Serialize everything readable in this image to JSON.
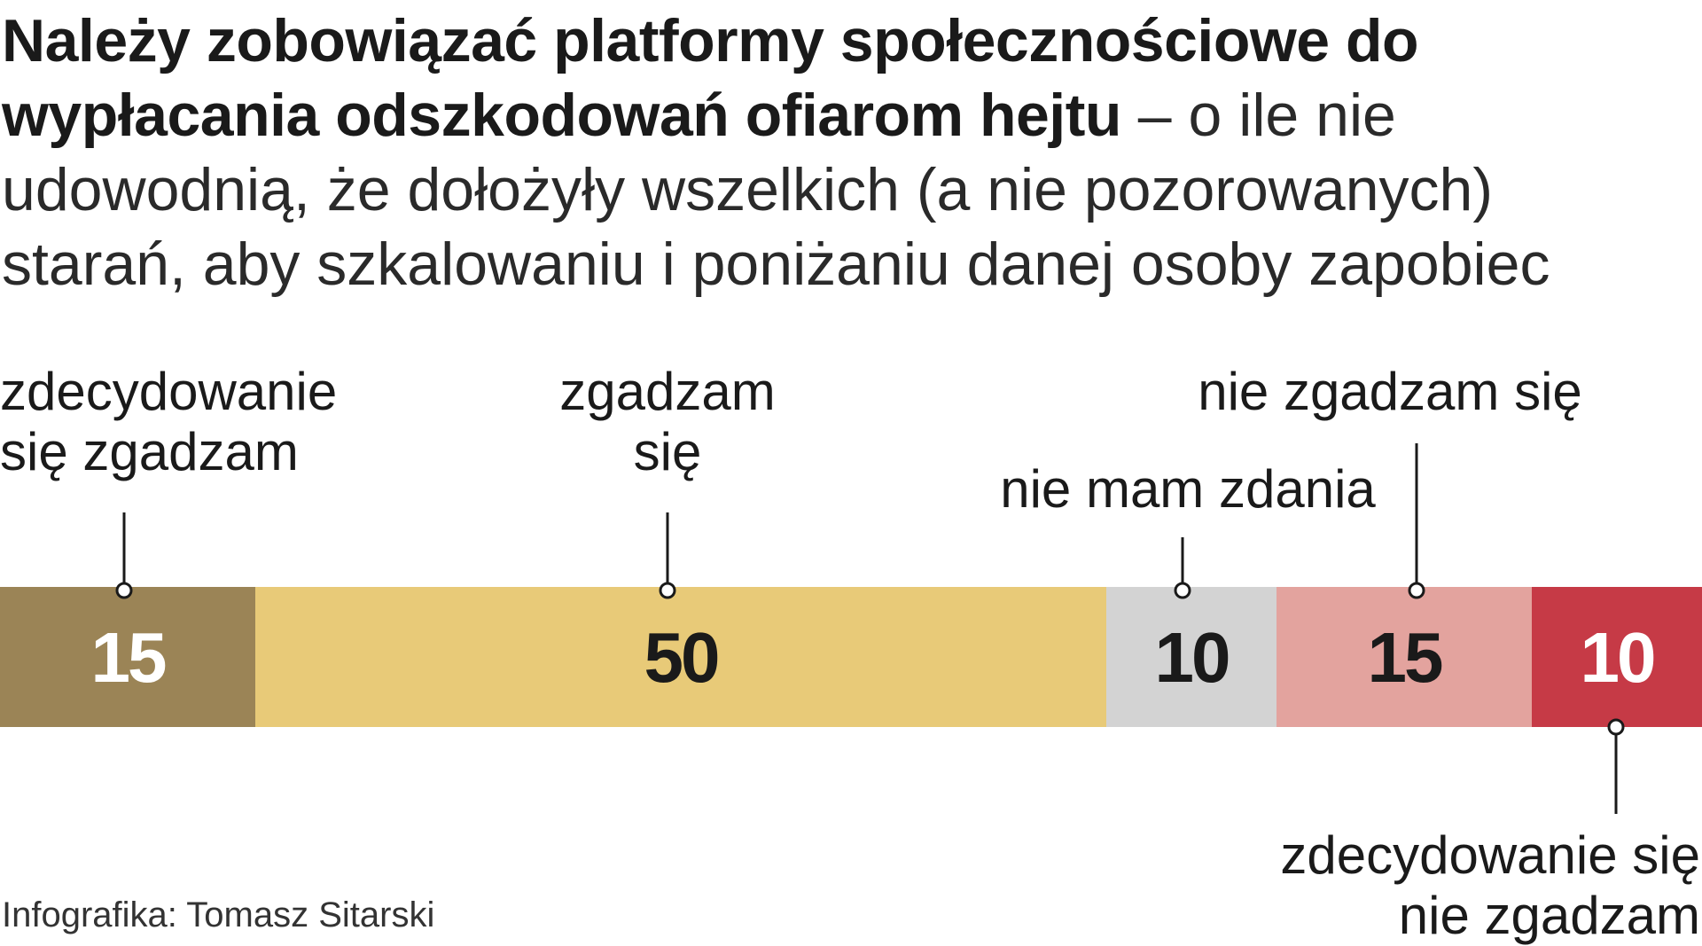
{
  "title": {
    "bold": "Należy zobowiązać platformy społecznościowe do wypłacania odszkodowań ofiarom hejtu",
    "rest": " – o ile nie udowodnią, że dołożyły wszelkich (a nie pozorowanych) starań, aby szkalowaniu i poniżaniu danej osoby zapobiec"
  },
  "credit": "Infografika: Tomasz Sitarski",
  "chart_data": {
    "type": "bar",
    "orientation": "horizontal-stacked",
    "total": 100,
    "segments": [
      {
        "label": [
          "zdecydowanie",
          "się zgadzam"
        ],
        "value": 15,
        "display": "15",
        "color": "#9b8456",
        "text_color": "#ffffff",
        "label_position": "above"
      },
      {
        "label": [
          "zgadzam",
          "się"
        ],
        "value": 50,
        "display": "50",
        "color": "#e8ca78",
        "text_color": "#1a1a1a",
        "label_position": "above"
      },
      {
        "label": [
          "nie mam zdania"
        ],
        "value": 10,
        "display": "10",
        "color": "#d3d3d3",
        "text_color": "#1a1a1a",
        "label_position": "above"
      },
      {
        "label": [
          "nie zgadzam się"
        ],
        "value": 15,
        "display": "15",
        "color": "#e3a39e",
        "text_color": "#1a1a1a",
        "label_position": "above"
      },
      {
        "label": [
          "zdecydowanie się",
          "nie zgadzam"
        ],
        "value": 10,
        "display": "10",
        "color": "#c63a46",
        "text_color": "#ffffff",
        "label_position": "below"
      }
    ]
  }
}
